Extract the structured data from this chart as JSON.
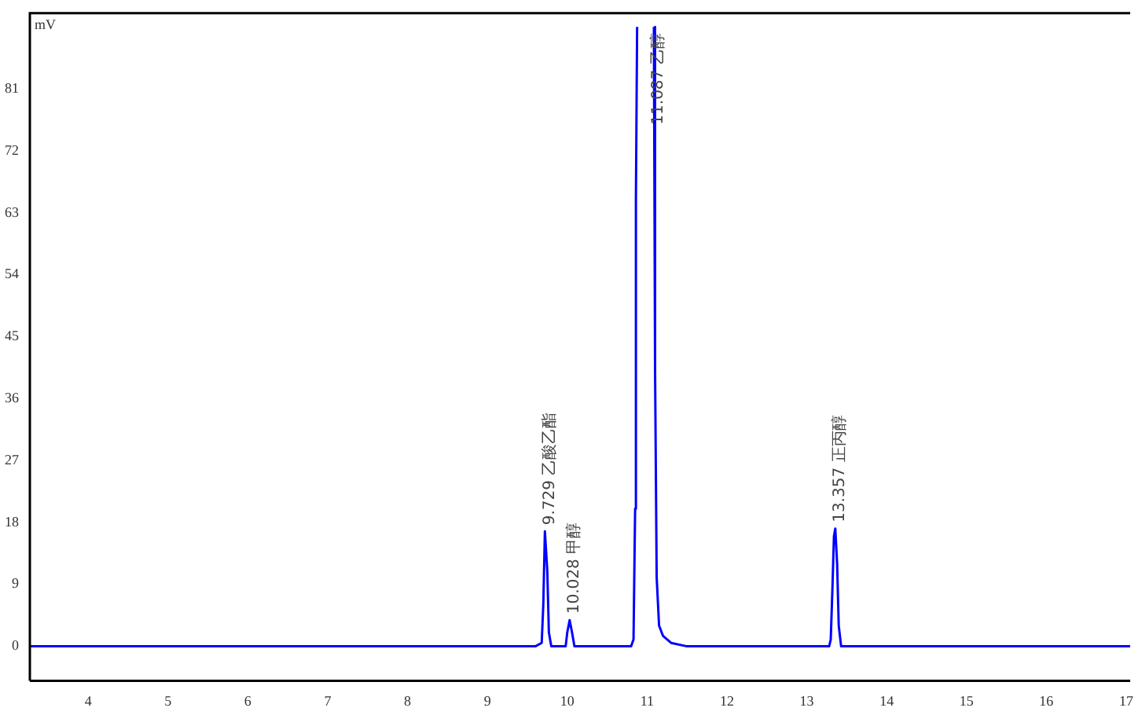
{
  "chart_data": {
    "type": "line",
    "ylabel": "mV",
    "series": [
      {
        "color": "#0000ff",
        "x": [
          3.27,
          9.6,
          9.68,
          9.7,
          9.72,
          9.75,
          9.77,
          9.8,
          9.98,
          10.0,
          10.03,
          10.06,
          10.09,
          10.8,
          10.83,
          10.85,
          10.86,
          10.875,
          10.98,
          11.085,
          11.1,
          11.12,
          11.15,
          11.2,
          11.3,
          11.5,
          13.28,
          13.3,
          13.32,
          13.34,
          13.357,
          13.38,
          13.4,
          13.43,
          17.05
        ],
        "values": [
          0,
          0,
          0.5,
          6,
          16.7,
          11,
          2,
          0,
          0,
          2,
          3.8,
          2,
          0,
          0,
          1,
          20,
          65,
          90,
          null,
          90,
          40,
          10,
          3,
          1.5,
          0.5,
          0,
          0,
          1,
          8,
          16,
          17.1,
          12,
          3,
          0,
          0
        ]
      }
    ],
    "xlim": [
      3.27,
      17.05
    ],
    "xticks": [
      4,
      5,
      6,
      7,
      8,
      9,
      10,
      11,
      12,
      13,
      14,
      15,
      16,
      17
    ],
    "ylim": [
      -5,
      92
    ],
    "yticks": [
      0,
      9,
      18,
      27,
      36,
      45,
      54,
      63,
      72,
      81
    ],
    "grid": false,
    "legend": false,
    "marker": "none",
    "line_style": "solid",
    "annotations": [
      {
        "text": "9.729 乙酸乙酯",
        "x": 9.729,
        "y": 16.7
      },
      {
        "text": "10.028 甲醇",
        "x": 10.028,
        "y": 3.8
      },
      {
        "text": "11.087 乙醇",
        "x": 11.087,
        "y": 90
      },
      {
        "text": "13.357 正丙醇",
        "x": 13.357,
        "y": 17.1
      }
    ]
  }
}
